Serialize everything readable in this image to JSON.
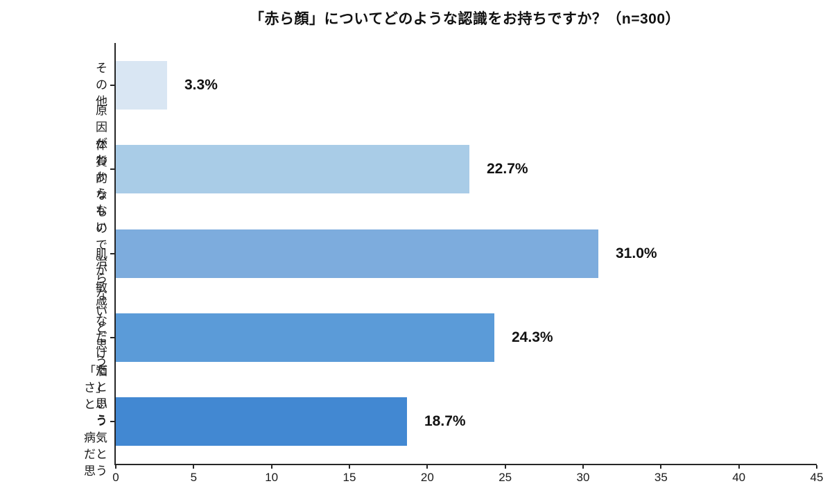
{
  "chart_data": {
    "type": "bar",
    "orientation": "horizontal",
    "title": "「赤ら顔」についてどのような認識をお持ちですか？（n=300）",
    "categories": [
      "その他",
      "原因が\nわからない",
      "体質的なもので\n治らないと思う",
      "肌が敏感\nなだけだと思う",
      "「酒さ」という\n病気だと思う"
    ],
    "values": [
      3.3,
      22.7,
      31.0,
      24.3,
      18.7
    ],
    "value_labels": [
      "3.3%",
      "22.7%",
      "31.0%",
      "24.3%",
      "18.7%"
    ],
    "bar_colors": [
      "#d9e6f3",
      "#a9cce7",
      "#7dacdd",
      "#5b9bd8",
      "#4288d2"
    ],
    "xlim": [
      0,
      45
    ],
    "x_ticks": [
      0,
      5,
      10,
      15,
      20,
      25,
      30,
      35,
      40,
      45
    ],
    "xlabel": "",
    "ylabel": "",
    "grid": false,
    "legend": "none"
  }
}
